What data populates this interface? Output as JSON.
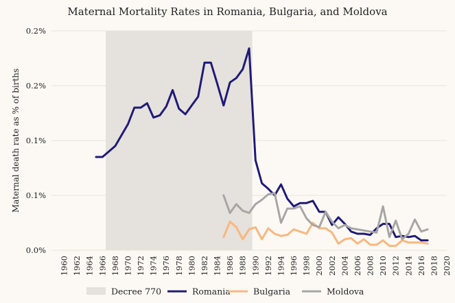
{
  "chart_data": {
    "type": "line",
    "title": "Maternal Mortality Rates in Romania, Bulgaria, and Moldova",
    "xlabel": "",
    "ylabel": "Maternal death rate as % of births",
    "xlim": [
      1958,
      2020
    ],
    "ylim": [
      0,
      0.2
    ],
    "x_ticks": [
      1960,
      1962,
      1964,
      1966,
      1968,
      1970,
      1972,
      1974,
      1976,
      1978,
      1980,
      1982,
      1984,
      1986,
      1988,
      1990,
      1992,
      1994,
      1996,
      1998,
      2000,
      2002,
      2004,
      2006,
      2008,
      2010,
      2012,
      2014,
      2016,
      2018,
      2020
    ],
    "y_ticks": [
      {
        "value": 0,
        "label": "0.0%"
      },
      {
        "value": 0.05,
        "label": "0.1%"
      },
      {
        "value": 0.1,
        "label": "0.1%"
      },
      {
        "value": 0.15,
        "label": "0.2%"
      },
      {
        "value": 0.2,
        "label": "0.2%"
      }
    ],
    "shaded_region": {
      "label": "Decree 770",
      "x_start": 1966.5,
      "x_end": 1989.5,
      "color": "#e5e1dc"
    },
    "series": [
      {
        "name": "Romania",
        "color": "#1f1a78",
        "x": [
          1965,
          1966,
          1967,
          1968,
          1969,
          1970,
          1971,
          1972,
          1973,
          1974,
          1975,
          1976,
          1977,
          1978,
          1979,
          1980,
          1981,
          1982,
          1983,
          1984,
          1985,
          1986,
          1987,
          1988,
          1989,
          1990,
          1991,
          1992,
          1993,
          1994,
          1995,
          1996,
          1997,
          1998,
          1999,
          2000,
          2001,
          2002,
          2003,
          2004,
          2005,
          2006,
          2007,
          2008,
          2009,
          2010,
          2011,
          2012,
          2013,
          2014,
          2015,
          2016,
          2017
        ],
        "y": [
          0.085,
          0.085,
          0.09,
          0.095,
          0.105,
          0.115,
          0.13,
          0.13,
          0.134,
          0.121,
          0.123,
          0.131,
          0.146,
          0.129,
          0.124,
          0.132,
          0.14,
          0.171,
          0.171,
          0.152,
          0.132,
          0.153,
          0.157,
          0.165,
          0.184,
          0.082,
          0.061,
          0.056,
          0.05,
          0.06,
          0.047,
          0.04,
          0.043,
          0.043,
          0.045,
          0.035,
          0.035,
          0.023,
          0.03,
          0.024,
          0.017,
          0.015,
          0.015,
          0.014,
          0.02,
          0.024,
          0.024,
          0.012,
          0.013,
          0.012,
          0.013,
          0.009,
          0.009
        ]
      },
      {
        "name": "Bulgaria",
        "color": "#f9b77e",
        "x": [
          1985,
          1986,
          1987,
          1988,
          1989,
          1990,
          1991,
          1992,
          1993,
          1994,
          1995,
          1996,
          1997,
          1998,
          1999,
          2000,
          2001,
          2002,
          2003,
          2004,
          2005,
          2006,
          2007,
          2008,
          2009,
          2010,
          2011,
          2012,
          2013,
          2014,
          2015,
          2016,
          2017
        ],
        "y": [
          0.012,
          0.026,
          0.021,
          0.01,
          0.019,
          0.021,
          0.01,
          0.02,
          0.015,
          0.013,
          0.014,
          0.019,
          0.017,
          0.015,
          0.025,
          0.02,
          0.02,
          0.016,
          0.006,
          0.01,
          0.011,
          0.006,
          0.01,
          0.005,
          0.005,
          0.009,
          0.004,
          0.004,
          0.009,
          0.007,
          0.007,
          0.007,
          0.006
        ]
      },
      {
        "name": "Moldova",
        "color": "#a8a6a4",
        "x": [
          1985,
          1986,
          1987,
          1988,
          1989,
          1990,
          1991,
          1992,
          1993,
          1994,
          1995,
          1996,
          1997,
          1998,
          1999,
          2000,
          2001,
          2002,
          2003,
          2004,
          2005,
          2006,
          2007,
          2008,
          2009,
          2010,
          2011,
          2012,
          2013,
          2014,
          2015,
          2016,
          2017
        ],
        "y": [
          0.05,
          0.034,
          0.042,
          0.036,
          0.034,
          0.042,
          0.046,
          0.051,
          0.052,
          0.025,
          0.038,
          0.038,
          0.04,
          0.029,
          0.023,
          0.021,
          0.035,
          0.026,
          0.02,
          0.023,
          0.02,
          0.019,
          0.018,
          0.017,
          0.016,
          0.04,
          0.012,
          0.027,
          0.01,
          0.015,
          0.028,
          0.017,
          0.019
        ]
      }
    ],
    "legend": {
      "placement": "bottom",
      "entries": [
        {
          "label": "Decree 770",
          "kind": "patch",
          "color": "#e5e1dc"
        },
        {
          "label": "Romania",
          "kind": "line",
          "color": "#1f1a78"
        },
        {
          "label": "Bulgaria",
          "kind": "line",
          "color": "#f9b77e"
        },
        {
          "label": "Moldova",
          "kind": "line",
          "color": "#a8a6a4"
        }
      ]
    },
    "grid": {
      "horizontal": true,
      "vertical": false
    }
  }
}
